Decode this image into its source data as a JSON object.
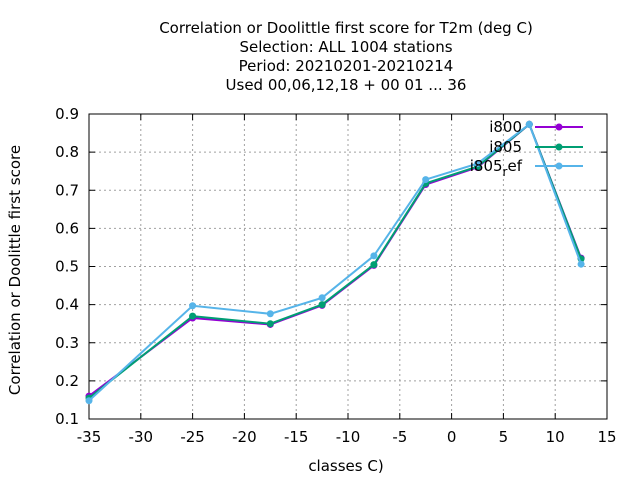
{
  "chart_data": {
    "type": "line",
    "title_lines": [
      "Correlation or Doolittle first score  for T2m (deg C)",
      "Selection: ALL   1004 stations",
      "Period: 20210201-20210214",
      "Used  00,06,12,18 + 00 01 ... 36"
    ],
    "xlabel": "classes C)",
    "ylabel": "Correlation or Doolittle first score",
    "xlim": [
      -35,
      15
    ],
    "ylim": [
      0.1,
      0.9
    ],
    "xticks": [
      -35,
      -30,
      -25,
      -20,
      -15,
      -10,
      -5,
      0,
      5,
      10,
      15
    ],
    "yticks": [
      0.1,
      0.2,
      0.3,
      0.4,
      0.5,
      0.6,
      0.7,
      0.8,
      0.9
    ],
    "xtick_labels": [
      "-35",
      "-30",
      "-25",
      "-20",
      "-15",
      "-10",
      "-5",
      "0",
      "5",
      "10",
      "15"
    ],
    "ytick_labels": [
      "0.1",
      "0.2",
      "0.3",
      "0.4",
      "0.5",
      "0.6",
      "0.7",
      "0.8",
      "0.9"
    ],
    "grid": true,
    "legend_position": "top-right",
    "x": [
      -35,
      -25,
      -17.5,
      -12.5,
      -7.5,
      -2.5,
      2.5,
      7.5,
      12.5
    ],
    "series": [
      {
        "name": "i800",
        "legend_main": "i800",
        "legend_sub": "",
        "legend_tail": "",
        "color": "#9400d3",
        "values": [
          0.16,
          0.365,
          0.348,
          0.398,
          0.503,
          0.715,
          0.76,
          0.873,
          0.522
        ]
      },
      {
        "name": "i805",
        "legend_main": "i805",
        "legend_sub": "",
        "legend_tail": "",
        "color": "#009e73",
        "values": [
          0.155,
          0.37,
          0.35,
          0.4,
          0.505,
          0.718,
          0.762,
          0.873,
          0.52
        ]
      },
      {
        "name": "i805_ref",
        "legend_main": "i805",
        "legend_sub": "r",
        "legend_tail": "ef",
        "color": "#56b4e9",
        "values": [
          0.148,
          0.397,
          0.376,
          0.418,
          0.528,
          0.728,
          0.77,
          0.873,
          0.506
        ]
      }
    ]
  }
}
